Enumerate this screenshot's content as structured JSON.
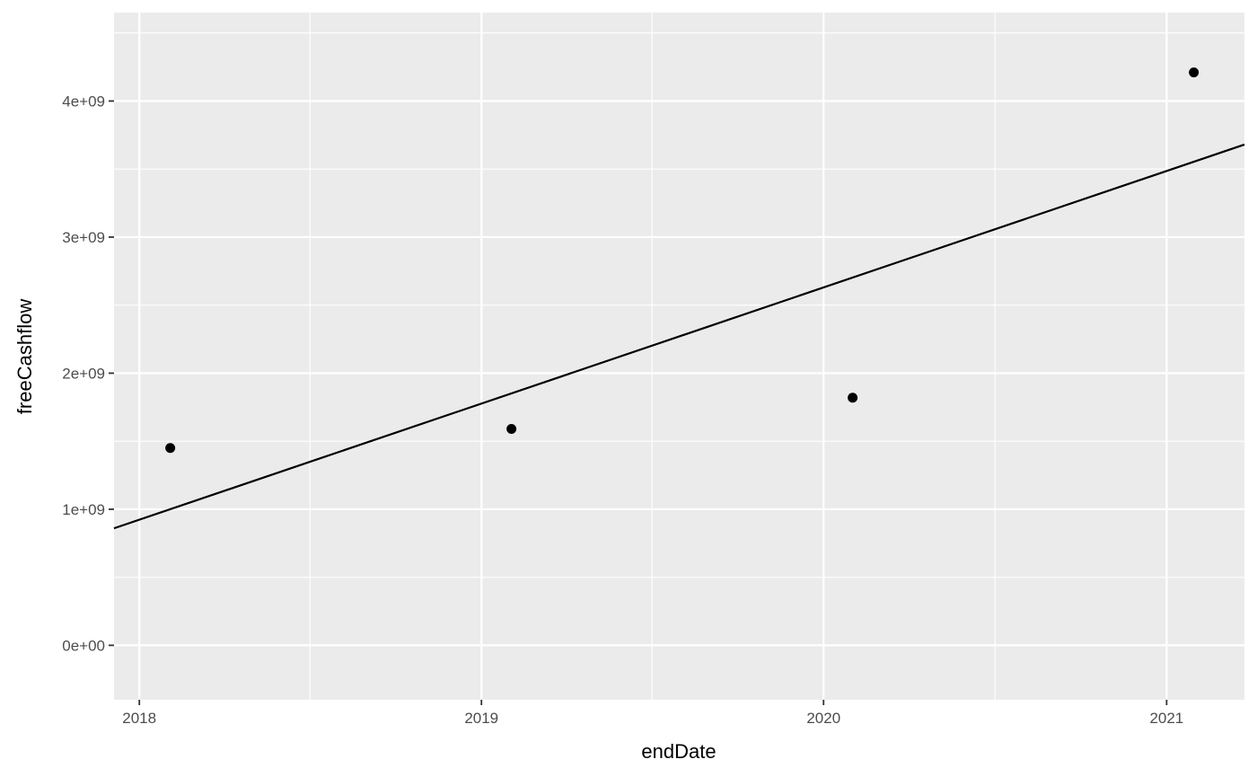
{
  "chart_data": {
    "type": "scatter",
    "title": "",
    "xlabel": "endDate",
    "ylabel": "freeCashflow",
    "x_type": "date",
    "xlim": [
      "2017-12-05",
      "2021-03-25"
    ],
    "ylim": [
      -400000000,
      4650000000
    ],
    "x_ticks": [
      {
        "value": "2018-01-01",
        "label": "2018"
      },
      {
        "value": "2019-01-01",
        "label": "2019"
      },
      {
        "value": "2020-01-01",
        "label": "2020"
      },
      {
        "value": "2021-01-01",
        "label": "2021"
      }
    ],
    "x_minor_ticks": [
      "2018-07-02",
      "2019-07-02",
      "2020-07-02"
    ],
    "y_ticks": [
      {
        "value": 0,
        "label": "0e+00"
      },
      {
        "value": 1000000000,
        "label": "1e+09"
      },
      {
        "value": 2000000000,
        "label": "2e+09"
      },
      {
        "value": 3000000000,
        "label": "3e+09"
      },
      {
        "value": 4000000000,
        "label": "4e+09"
      }
    ],
    "y_minor_ticks": [
      500000000,
      1500000000,
      2500000000,
      3500000000,
      4500000000
    ],
    "points": [
      {
        "x": "2018-02-03",
        "y": 1450000000
      },
      {
        "x": "2019-02-02",
        "y": 1590000000
      },
      {
        "x": "2020-02-01",
        "y": 1820000000
      },
      {
        "x": "2021-01-30",
        "y": 4210000000
      }
    ],
    "trend_line": [
      {
        "x": "2017-12-05",
        "y": 860000000
      },
      {
        "x": "2021-03-25",
        "y": 3680000000
      }
    ],
    "grid": true,
    "colors": {
      "panel_background": "#ebebeb",
      "grid_line": "#ffffff",
      "point": "#000000",
      "trend_line": "#000000",
      "tick_mark": "#333333"
    }
  }
}
